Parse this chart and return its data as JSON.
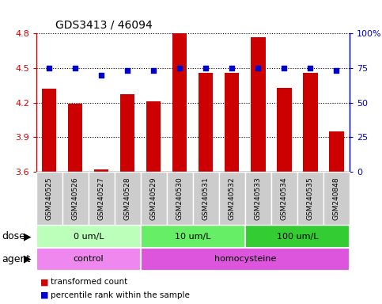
{
  "title": "GDS3413 / 46094",
  "samples": [
    "GSM240525",
    "GSM240526",
    "GSM240527",
    "GSM240528",
    "GSM240529",
    "GSM240530",
    "GSM240531",
    "GSM240532",
    "GSM240533",
    "GSM240534",
    "GSM240535",
    "GSM240848"
  ],
  "transformed_count": [
    4.32,
    4.19,
    3.62,
    4.27,
    4.21,
    4.8,
    4.46,
    4.46,
    4.77,
    4.33,
    4.46,
    3.95
  ],
  "percentile_rank": [
    75,
    75,
    70,
    73,
    73,
    75,
    75,
    75,
    75,
    75,
    75,
    73
  ],
  "ylim_left": [
    3.6,
    4.8
  ],
  "ylim_right": [
    0,
    100
  ],
  "yticks_left": [
    3.6,
    3.9,
    4.2,
    4.5,
    4.8
  ],
  "yticks_right": [
    0,
    25,
    50,
    75,
    100
  ],
  "bar_color": "#cc0000",
  "dot_color": "#0000cc",
  "bar_bottom": 3.6,
  "dose_groups": [
    {
      "label": "0 um/L",
      "start": 0,
      "end": 4,
      "color": "#bbffbb"
    },
    {
      "label": "10 um/L",
      "start": 4,
      "end": 8,
      "color": "#66ee66"
    },
    {
      "label": "100 um/L",
      "start": 8,
      "end": 12,
      "color": "#33cc33"
    }
  ],
  "agent_groups": [
    {
      "label": "control",
      "start": 0,
      "end": 4,
      "color": "#ee88ee"
    },
    {
      "label": "homocysteine",
      "start": 4,
      "end": 12,
      "color": "#dd55dd"
    }
  ],
  "dose_label": "dose",
  "agent_label": "agent",
  "legend_bar_label": "transformed count",
  "legend_dot_label": "percentile rank within the sample",
  "grid_color": "black",
  "label_box_color": "#cccccc",
  "chart_bg": "#ffffff"
}
